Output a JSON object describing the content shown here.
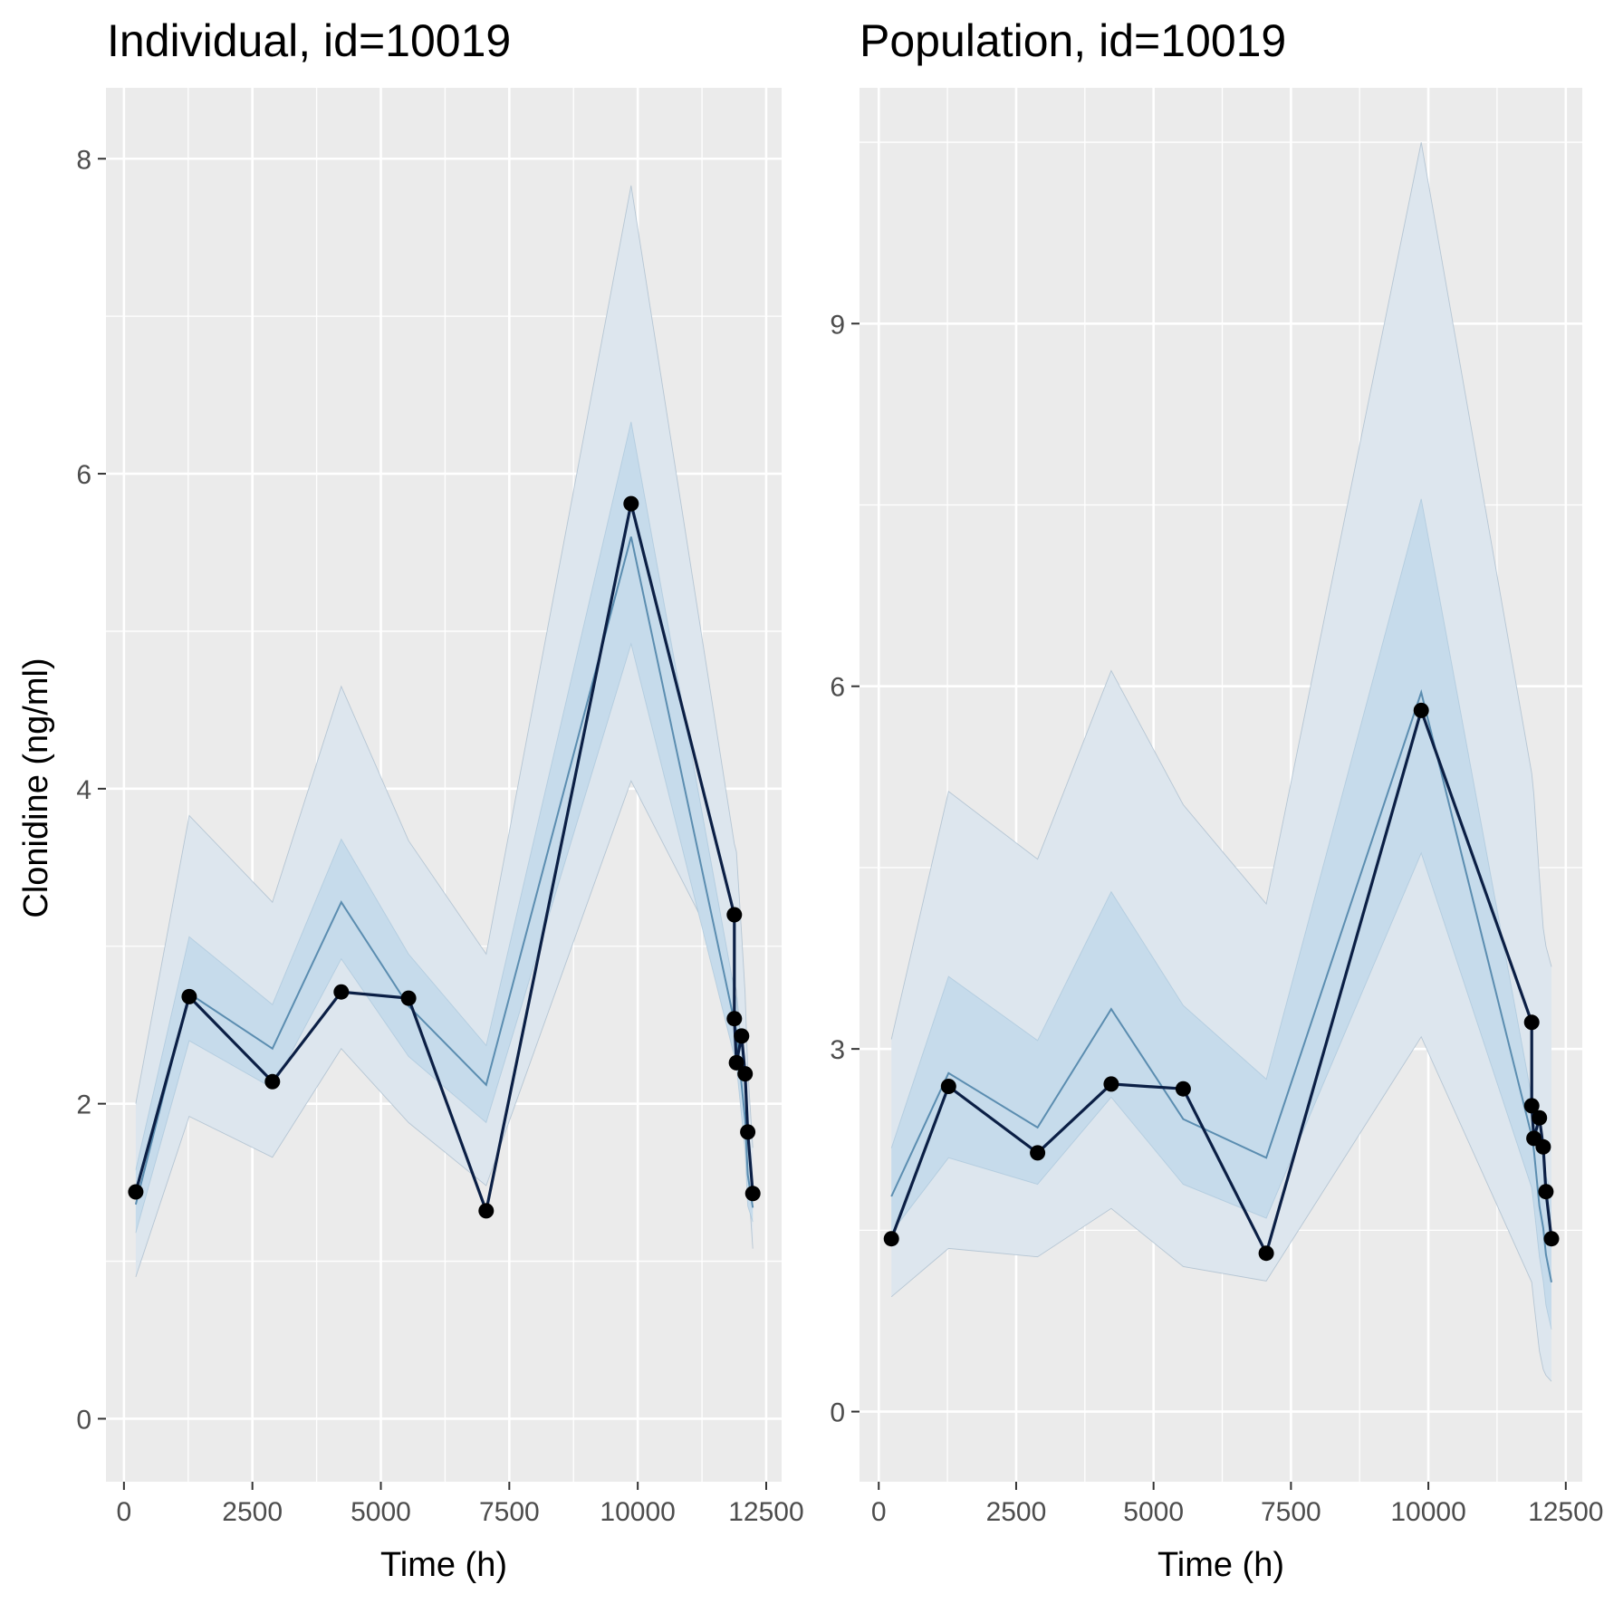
{
  "colors": {
    "panel_background": "#ebebeb",
    "grid_major": "#ffffff",
    "outer_band": "#dde6ee",
    "inner_band": "#c6dbeb",
    "prediction_line": "#5b8db0",
    "observed_line": "#0b1f45",
    "observed_point": "#000000",
    "tick": "#333333"
  },
  "ylabel": "Clonidine (ng/ml)",
  "chart_data": [
    {
      "type": "line",
      "title": "Individual, id=10019",
      "xlabel": "Time (h)",
      "ylabel": "Clonidine (ng/ml)",
      "xlim": [
        -350,
        12800
      ],
      "ylim": [
        -0.4,
        8.45
      ],
      "xticks": [
        0,
        2500,
        5000,
        7500,
        10000,
        12500
      ],
      "xtick_labels": [
        "0",
        "2500",
        "5000",
        "7500",
        "10000",
        "12500"
      ],
      "yticks": [
        0,
        2,
        4,
        6,
        8
      ],
      "ytick_labels": [
        "0",
        "2",
        "4",
        "6",
        "8"
      ],
      "grid": true,
      "series": [
        {
          "role": "outer_band",
          "x": [
            230,
            1270,
            2890,
            4230,
            5540,
            7050,
            9870,
            11880,
            11920,
            12020,
            12090,
            12140,
            12240
          ],
          "lower": [
            0.9,
            1.92,
            1.66,
            2.35,
            1.88,
            1.48,
            4.05,
            2.77,
            2.72,
            2.35,
            2.05,
            1.55,
            1.08
          ],
          "upper": [
            2.0,
            3.83,
            3.28,
            4.65,
            3.67,
            2.95,
            7.83,
            3.65,
            3.6,
            3.08,
            2.7,
            2.22,
            1.72
          ]
        },
        {
          "role": "inner_band",
          "x": [
            230,
            1270,
            2890,
            4230,
            5540,
            7050,
            9870,
            11880,
            11920,
            12020,
            12090,
            12140,
            12240
          ],
          "lower": [
            1.18,
            2.4,
            2.1,
            2.92,
            2.3,
            1.88,
            4.92,
            2.3,
            2.24,
            1.92,
            1.7,
            1.35,
            1.25
          ],
          "upper": [
            1.58,
            3.06,
            2.63,
            3.68,
            2.95,
            2.37,
            6.33,
            2.72,
            2.67,
            2.37,
            2.13,
            1.82,
            1.48
          ]
        },
        {
          "role": "prediction",
          "x": [
            230,
            1270,
            2890,
            4230,
            5540,
            7050,
            9870,
            11880,
            11920,
            12020,
            12090,
            12140,
            12240
          ],
          "y": [
            1.36,
            2.7,
            2.35,
            3.28,
            2.62,
            2.12,
            5.6,
            2.52,
            2.46,
            2.12,
            1.9,
            1.55,
            1.34
          ]
        },
        {
          "role": "observed",
          "x": [
            230,
            1270,
            2890,
            4230,
            5540,
            7050,
            9870,
            11880,
            11880,
            11920,
            12020,
            12090,
            12140,
            12240
          ],
          "y": [
            1.44,
            2.68,
            2.14,
            2.71,
            2.67,
            1.32,
            5.81,
            3.2,
            2.54,
            2.26,
            2.43,
            2.19,
            1.82,
            1.43
          ]
        }
      ]
    },
    {
      "type": "line",
      "title": "Population, id=10019",
      "xlabel": "Time (h)",
      "xlim": [
        -350,
        12800
      ],
      "ylim": [
        -0.58,
        10.95
      ],
      "xticks": [
        0,
        2500,
        5000,
        7500,
        10000,
        12500
      ],
      "xtick_labels": [
        "0",
        "2500",
        "5000",
        "7500",
        "10000",
        "12500"
      ],
      "yticks": [
        0,
        3,
        6,
        9
      ],
      "ytick_labels": [
        "0",
        "3",
        "6",
        "9"
      ],
      "grid": true,
      "series": [
        {
          "role": "outer_band",
          "x": [
            230,
            1270,
            2890,
            4230,
            5540,
            7050,
            9870,
            11880,
            11920,
            12020,
            12090,
            12140,
            12240
          ],
          "lower": [
            0.95,
            1.35,
            1.28,
            1.68,
            1.2,
            1.08,
            3.1,
            1.07,
            0.9,
            0.5,
            0.35,
            0.3,
            0.25
          ],
          "upper": [
            3.08,
            5.13,
            4.57,
            6.13,
            5.02,
            4.2,
            10.5,
            5.28,
            5.1,
            4.42,
            4.0,
            3.85,
            3.68
          ]
        },
        {
          "role": "inner_band",
          "x": [
            230,
            1270,
            2890,
            4230,
            5540,
            7050,
            9870,
            11880,
            11920,
            12020,
            12090,
            12140,
            12240
          ],
          "lower": [
            1.48,
            2.1,
            1.88,
            2.6,
            1.88,
            1.6,
            4.62,
            1.85,
            1.7,
            1.28,
            1.08,
            0.88,
            0.68
          ],
          "upper": [
            2.18,
            3.6,
            3.07,
            4.3,
            3.36,
            2.75,
            7.55,
            2.6,
            2.5,
            2.3,
            2.12,
            1.95,
            1.82
          ]
        },
        {
          "role": "prediction",
          "x": [
            230,
            1270,
            2890,
            4230,
            5540,
            7050,
            9870,
            11880,
            11920,
            12020,
            12090,
            12140,
            12240
          ],
          "y": [
            1.78,
            2.8,
            2.35,
            3.33,
            2.42,
            2.1,
            5.95,
            2.28,
            2.16,
            1.7,
            1.52,
            1.3,
            1.07
          ]
        },
        {
          "role": "observed",
          "x": [
            230,
            1270,
            2890,
            4230,
            5540,
            7050,
            9870,
            11880,
            11880,
            11920,
            12020,
            12090,
            12140,
            12240
          ],
          "y": [
            1.43,
            2.69,
            2.14,
            2.71,
            2.67,
            1.31,
            5.8,
            3.22,
            2.53,
            2.26,
            2.43,
            2.19,
            1.82,
            1.43
          ]
        }
      ]
    }
  ]
}
